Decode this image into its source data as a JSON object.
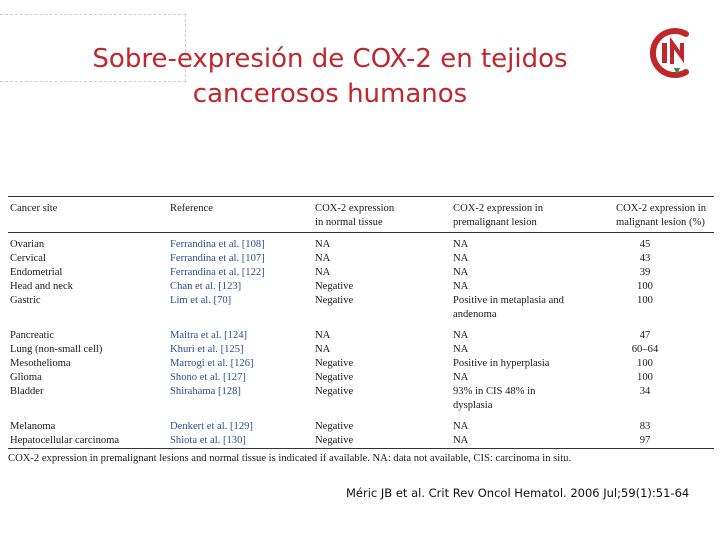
{
  "title": {
    "line1": "Sobre-expresión de COX-2 en tejidos",
    "line2": "cancerosos humanos"
  },
  "logo": {
    "icon": "cin-logo",
    "red": "#c0272d",
    "green": "#2f8f3d"
  },
  "table": {
    "headers": [
      {
        "lines": [
          "Cancer site"
        ]
      },
      {
        "lines": [
          "Reference"
        ]
      },
      {
        "lines": [
          "COX-2 expression",
          "in normal tissue"
        ]
      },
      {
        "lines": [
          "COX-2 expression in",
          "premalignant lesion"
        ]
      },
      {
        "lines": [
          "COX-2 expression in",
          "malignant lesion (%)"
        ]
      }
    ],
    "rows": [
      {
        "site": "Ovarian",
        "ref": "Ferrandina et al. [108]",
        "normal": "NA",
        "premalignant": "NA",
        "premalignant_cont": "",
        "malignant": "45"
      },
      {
        "site": "Cervical",
        "ref": "Ferrandina et al. [107]",
        "normal": "NA",
        "premalignant": "NA",
        "premalignant_cont": "",
        "malignant": "43"
      },
      {
        "site": "Endometrial",
        "ref": "Ferrandina et al. [122]",
        "normal": "NA",
        "premalignant": "NA",
        "premalignant_cont": "",
        "malignant": "39"
      },
      {
        "site": "Head and neck",
        "ref": "Chan et al. [123]",
        "normal": "Negative",
        "premalignant": "NA",
        "premalignant_cont": "",
        "malignant": "100"
      },
      {
        "site": "Gastric",
        "ref": "Lim et al. [70]",
        "normal": "Negative",
        "premalignant": "Positive in metaplasia and",
        "premalignant_cont": "andenoma",
        "malignant": "100"
      },
      {
        "site": "Pancreatic",
        "ref": "Maitra et al. [124]",
        "normal": "NA",
        "premalignant": "NA",
        "premalignant_cont": "",
        "malignant": "47"
      },
      {
        "site": "Lung (non-small cell)",
        "ref": "Khuri et al. [125]",
        "normal": "NA",
        "premalignant": "NA",
        "premalignant_cont": "",
        "malignant": "60–64"
      },
      {
        "site": "Mesothelioma",
        "ref": "Marrogi et al. [126]",
        "normal": "Negative",
        "premalignant": "Positive in hyperplasia",
        "premalignant_cont": "",
        "malignant": "100"
      },
      {
        "site": "Glioma",
        "ref": "Shono et al. [127]",
        "normal": "Negative",
        "premalignant": "NA",
        "premalignant_cont": "",
        "malignant": "100"
      },
      {
        "site": "Bladder",
        "ref": "Shirahama [128]",
        "normal": "Negative",
        "premalignant": "93% in CIS 48% in",
        "premalignant_cont": "dysplasia",
        "malignant": "34"
      },
      {
        "site": "Melanoma",
        "ref": "Denkert et al. [129]",
        "normal": "Negative",
        "premalignant": "NA",
        "premalignant_cont": "",
        "malignant": "83"
      },
      {
        "site": "Hepatocellular carcinoma",
        "ref": "Shiota et al. [130]",
        "normal": "Negative",
        "premalignant": "NA",
        "premalignant_cont": "",
        "malignant": "97"
      }
    ],
    "footnote": "COX-2 expression in premalignant lesions and normal tissue is indicated if available. NA: data not available, CIS: carcinoma in situ."
  },
  "citation": "Méric JB et al. Crit Rev Oncol Hematol. 2006 Jul;59(1):51-64"
}
